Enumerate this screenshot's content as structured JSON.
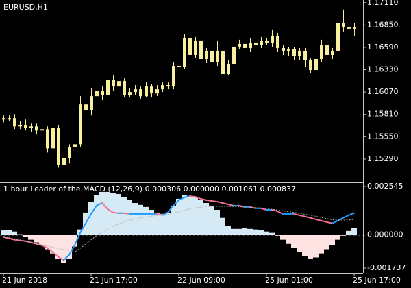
{
  "chart_data": [
    {
      "type": "candlestick",
      "title": "EURUSD,H1",
      "color": "#f7ef9c",
      "grid": false,
      "open": [
        1.15766,
        1.1575,
        1.15766,
        1.1567,
        1.15686,
        1.15654,
        1.1567,
        1.15622,
        1.15638,
        1.15414,
        1.15654,
        1.15222,
        1.15302,
        1.1543,
        1.15462,
        1.15926,
        1.15862,
        1.16022,
        1.16086,
        1.16038,
        1.16214,
        1.16134,
        1.16198,
        1.16038,
        1.1607,
        1.16102,
        1.16022,
        1.16134,
        1.16054,
        1.16102,
        1.1615,
        1.16134,
        1.16374,
        1.16358,
        1.16694,
        1.16502,
        1.16662,
        1.16454,
        1.1655,
        1.16422,
        1.1655,
        1.16278,
        1.1639,
        1.16598,
        1.1663,
        1.16582,
        1.16646,
        1.16614,
        1.16662,
        1.16646,
        1.16726,
        1.16582,
        1.1655,
        1.16566,
        1.16486,
        1.1655,
        1.16438,
        1.16326,
        1.16454,
        1.16614,
        1.16502,
        1.1655,
        1.1687,
        1.16822,
        1.16806
      ],
      "high": [
        1.15798,
        1.15798,
        1.15814,
        1.15734,
        1.1575,
        1.15702,
        1.15702,
        1.15654,
        1.1567,
        1.15686,
        1.15686,
        1.15366,
        1.15462,
        1.15542,
        1.16022,
        1.1607,
        1.16118,
        1.16182,
        1.16134,
        1.16294,
        1.16262,
        1.16342,
        1.1623,
        1.16118,
        1.1615,
        1.16134,
        1.16182,
        1.16166,
        1.1615,
        1.16182,
        1.16182,
        1.16422,
        1.16422,
        1.16742,
        1.16758,
        1.1671,
        1.16694,
        1.16582,
        1.16582,
        1.16662,
        1.16582,
        1.16438,
        1.16646,
        1.16678,
        1.16678,
        1.16694,
        1.16678,
        1.1671,
        1.16694,
        1.1679,
        1.16758,
        1.16614,
        1.16598,
        1.16598,
        1.16582,
        1.16582,
        1.1647,
        1.16502,
        1.16678,
        1.16646,
        1.16582,
        1.16934,
        1.1703,
        1.16902,
        1.1687
      ],
      "low": [
        1.15718,
        1.15734,
        1.15638,
        1.15638,
        1.15622,
        1.15606,
        1.15574,
        1.15574,
        1.15366,
        1.15382,
        1.1519,
        1.15174,
        1.15238,
        1.15398,
        1.1543,
        1.15542,
        1.15798,
        1.15942,
        1.15974,
        1.16022,
        1.16086,
        1.16086,
        1.16006,
        1.16006,
        1.16038,
        1.1599,
        1.16006,
        1.16006,
        1.16022,
        1.1607,
        1.16102,
        1.16102,
        1.1631,
        1.16342,
        1.1647,
        1.1647,
        1.16406,
        1.16406,
        1.1639,
        1.16374,
        1.16198,
        1.16262,
        1.16342,
        1.16566,
        1.1655,
        1.16534,
        1.16566,
        1.16582,
        1.16614,
        1.16598,
        1.16534,
        1.16502,
        1.16486,
        1.16438,
        1.16438,
        1.16358,
        1.16294,
        1.16294,
        1.16422,
        1.16454,
        1.16454,
        1.16502,
        1.16774,
        1.16774,
        1.16726
      ],
      "close": [
        1.1575,
        1.15766,
        1.1567,
        1.15686,
        1.15654,
        1.1567,
        1.15622,
        1.15638,
        1.15414,
        1.15654,
        1.15222,
        1.15302,
        1.1543,
        1.15462,
        1.15926,
        1.15862,
        1.16022,
        1.16086,
        1.16038,
        1.16214,
        1.16134,
        1.16198,
        1.16038,
        1.1607,
        1.16102,
        1.16022,
        1.16134,
        1.16054,
        1.16102,
        1.1615,
        1.16134,
        1.16374,
        1.16358,
        1.16694,
        1.16502,
        1.16662,
        1.16454,
        1.1655,
        1.16422,
        1.1655,
        1.16278,
        1.1639,
        1.16598,
        1.1663,
        1.16582,
        1.16646,
        1.16614,
        1.16662,
        1.16646,
        1.16726,
        1.16582,
        1.1655,
        1.16566,
        1.16486,
        1.1655,
        1.16438,
        1.16326,
        1.16454,
        1.16614,
        1.16502,
        1.1655,
        1.1687,
        1.16822,
        1.16806,
        1.16822
      ],
      "ylim": [
        1.1505,
        1.1714
      ],
      "yticks": [
        {
          "value": 1.1711,
          "label": "1.17110"
        },
        {
          "value": 1.1685,
          "label": "1.16850"
        },
        {
          "value": 1.1659,
          "label": "1.16590"
        },
        {
          "value": 1.1633,
          "label": "1.16330"
        },
        {
          "value": 1.1607,
          "label": "1.16070"
        },
        {
          "value": 1.1581,
          "label": "1.15810"
        },
        {
          "value": 1.1555,
          "label": "1.15550"
        },
        {
          "value": 1.1529,
          "label": "1.15290"
        }
      ]
    },
    {
      "type": "indicator",
      "title": "1 hour Leader of the MACD (12,26,9) 0.000306 0.000000 0.001061 0.000837",
      "grid": false,
      "categories": [
        "21 Jun 2018",
        null,
        null,
        null,
        null,
        null,
        null,
        null,
        null,
        null,
        null,
        null,
        null,
        null,
        null,
        null,
        "21 Jun 17:00",
        null,
        null,
        null,
        null,
        null,
        null,
        null,
        null,
        null,
        null,
        null,
        null,
        null,
        null,
        null,
        "22 Jun 09:00",
        null,
        null,
        null,
        null,
        null,
        null,
        null,
        null,
        null,
        null,
        null,
        null,
        null,
        null,
        null,
        "25 Jun 01:00",
        null,
        null,
        null,
        null,
        null,
        null,
        null,
        null,
        null,
        null,
        null,
        null,
        null,
        null,
        null,
        "25 Jun 17:00"
      ],
      "series": [
        {
          "type": "histogram",
          "color": "#d6eaf6",
          "negative_color": "#fde2e2",
          "values": [
            0.00025,
            0.00025,
            0.00018,
            4e-05,
            -0.00011,
            -0.00025,
            -0.00039,
            -0.00054,
            -0.00075,
            -0.00097,
            -0.00125,
            -0.00147,
            -0.00125,
            -0.00061,
            0.00029,
            0.00118,
            0.00172,
            0.00211,
            0.00226,
            0.00226,
            0.00222,
            0.00215,
            0.00197,
            0.00183,
            0.00168,
            0.00158,
            0.00147,
            0.00132,
            0.00118,
            0.00111,
            0.00118,
            0.00154,
            0.0019,
            0.00211,
            0.00204,
            0.00197,
            0.00183,
            0.00168,
            0.00154,
            0.00132,
            0.0009,
            0.00047,
            0.00032,
            0.00032,
            0.00036,
            0.00032,
            0.00029,
            0.00025,
            0.00018,
            0.00011,
            -4e-05,
            -0.00025,
            -0.00047,
            -0.00068,
            -0.0009,
            -0.00111,
            -0.00125,
            -0.00118,
            -0.00097,
            -0.00075,
            -0.00054,
            -0.00025,
            -4e-05,
            0.00021,
            0.00036
          ]
        },
        {
          "type": "line",
          "color": "#1e9bff",
          "down_color": "#f07090",
          "values": [
            -0.00011,
            -0.00018,
            -0.00025,
            -0.00029,
            -0.00032,
            -0.00039,
            -0.00047,
            -0.00054,
            -0.00068,
            -0.0009,
            -0.00115,
            -0.00132,
            -0.00104,
            -0.00054,
            0.00011,
            0.00061,
            0.00111,
            0.00154,
            0.00168,
            0.00136,
            0.00118,
            0.00115,
            0.00115,
            0.00111,
            0.00111,
            0.00111,
            0.00111,
            0.00111,
            0.00111,
            0.00104,
            0.00118,
            0.00154,
            0.00183,
            0.00197,
            0.00204,
            0.002,
            0.0019,
            0.00183,
            0.00179,
            0.00175,
            0.00168,
            0.00161,
            0.00154,
            0.00154,
            0.00147,
            0.00147,
            0.0014,
            0.0014,
            0.00132,
            0.00132,
            0.00125,
            0.00111,
            0.00111,
            0.00111,
            0.00104,
            0.00097,
            0.0009,
            0.00082,
            0.00075,
            0.00068,
            0.00061,
            0.00075,
            0.0009,
            0.00104,
            0.00115
          ]
        },
        {
          "type": "line",
          "color": "#b0b0b0",
          "dashed": true,
          "values": [
            -7e-05,
            -0.00013,
            -0.0002,
            -0.00026,
            -0.00033,
            -0.00039,
            -0.00045,
            -0.00052,
            -0.00058,
            -0.00064,
            -0.00071,
            -0.00077,
            -0.00084,
            -0.0009,
            -0.0007,
            -0.00048,
            -0.00025,
            -4e-05,
            0.00015,
            0.00032,
            0.00046,
            0.00058,
            0.00068,
            0.00077,
            0.00084,
            0.0009,
            0.00095,
            0.00099,
            0.00102,
            0.00104,
            0.00108,
            0.00115,
            0.00122,
            0.0013,
            0.00137,
            0.00142,
            0.00146,
            0.00149,
            0.0015,
            0.0015,
            0.0015,
            0.0015,
            0.00149,
            0.00148,
            0.00147,
            0.00145,
            0.00143,
            0.00141,
            0.00138,
            0.00135,
            0.00131,
            0.00127,
            0.00123,
            0.00119,
            0.00114,
            0.00109,
            0.00104,
            0.00098,
            0.00092,
            0.00086,
            0.0008,
            0.00078,
            0.00078,
            0.00079,
            0.00081
          ]
        }
      ],
      "levels": [
        0
      ],
      "ylim": [
        -0.00199,
        0.00276
      ],
      "yticks": [
        {
          "value": 0.002545,
          "label": "0.002545"
        },
        {
          "value": 0,
          "label": "0.000000"
        },
        {
          "value": -0.001737,
          "label": "-0.001737"
        }
      ]
    }
  ]
}
